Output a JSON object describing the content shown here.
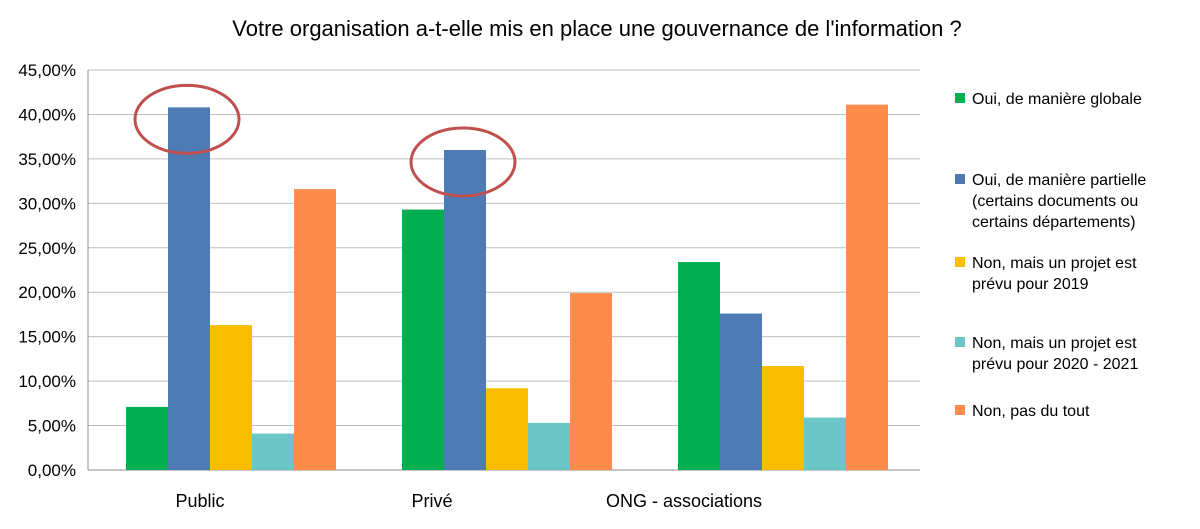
{
  "chart_data": {
    "type": "bar",
    "title": "Votre organisation a-t-elle mis en place une gouvernance de l'information ?",
    "xlabel": "",
    "ylabel": "",
    "categories": [
      "Public",
      "Privé",
      "ONG - associations"
    ],
    "ylim": [
      0,
      45
    ],
    "yticks": [
      0,
      5,
      10,
      15,
      20,
      25,
      30,
      35,
      40,
      45
    ],
    "ytick_labels": [
      "0,00%",
      "5,00%",
      "10,00%",
      "15,00%",
      "20,00%",
      "25,00%",
      "30,00%",
      "35,00%",
      "40,00%",
      "45,00%"
    ],
    "grid": true,
    "legend_position": "right",
    "series": [
      {
        "name": "Oui, de manière globale",
        "color": "#00b050",
        "values": [
          7.1,
          29.3,
          23.4
        ]
      },
      {
        "name": "Oui, de manière partielle (certains documents ou certains départements)",
        "legend_lines": [
          "Oui, de manière partielle",
          "(certains documents ou",
          "certains départements)"
        ],
        "color": "#4f7bb5",
        "values": [
          40.8,
          36.0,
          17.6
        ]
      },
      {
        "name": "Non, mais un projet est prévu pour 2019",
        "legend_lines": [
          "Non, mais un projet est",
          "prévu pour 2019"
        ],
        "color": "#fbbd00",
        "values": [
          16.3,
          9.2,
          11.7
        ]
      },
      {
        "name": "Non, mais un projet est prévu pour 2020 - 2021",
        "legend_lines": [
          "Non, mais un projet est",
          "prévu pour 2020 - 2021"
        ],
        "color": "#6cc6c6",
        "values": [
          4.1,
          5.3,
          5.9
        ]
      },
      {
        "name": "Non, pas du tout",
        "color": "#ff8c4b",
        "values": [
          31.6,
          19.9,
          41.1
        ]
      }
    ],
    "highlights": [
      {
        "category": "Public",
        "series": "Oui, de manière partielle (certains documents ou certains départements)",
        "shape": "ellipse",
        "color": "#c0504d"
      },
      {
        "category": "Privé",
        "series": "Oui, de manière partielle (certains documents ou certains départements)",
        "shape": "ellipse",
        "color": "#c0504d"
      }
    ]
  }
}
